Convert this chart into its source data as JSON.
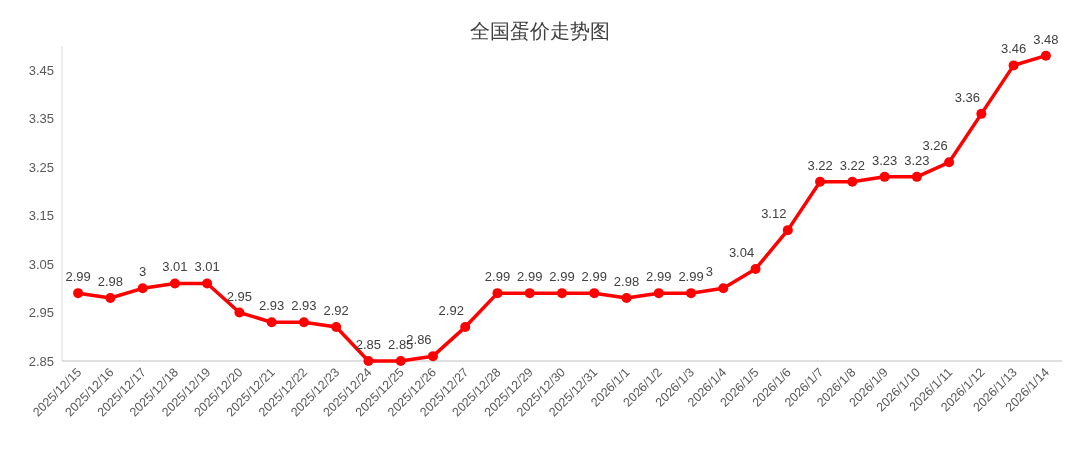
{
  "chart_data": {
    "type": "line",
    "title": "全国蛋价走势图",
    "categories": [
      "2025/12/15",
      "2025/12/16",
      "2025/12/17",
      "2025/12/18",
      "2025/12/19",
      "2025/12/20",
      "2025/12/21",
      "2025/12/22",
      "2025/12/23",
      "2025/12/24",
      "2025/12/25",
      "2025/12/26",
      "2025/12/27",
      "2025/12/28",
      "2025/12/29",
      "2025/12/30",
      "2025/12/31",
      "2026/1/1",
      "2026/1/2",
      "2026/1/3",
      "2026/1/4",
      "2026/1/5",
      "2026/1/6",
      "2026/1/7",
      "2026/1/8",
      "2026/1/9",
      "2026/1/10",
      "2026/1/11",
      "2026/1/12",
      "2026/1/13",
      "2026/1/14"
    ],
    "series": [
      {
        "color": "#ff0000",
        "values": [
          2.99,
          2.98,
          3,
          3.01,
          3.01,
          2.95,
          2.93,
          2.93,
          2.92,
          2.85,
          2.85,
          2.86,
          2.92,
          2.99,
          2.99,
          2.99,
          2.99,
          2.98,
          2.99,
          2.99,
          3,
          3.04,
          3.12,
          3.22,
          3.22,
          3.23,
          3.23,
          3.26,
          3.36,
          3.46,
          3.48
        ]
      }
    ],
    "ylim": [
      2.85,
      3.5
    ],
    "yticks": [
      2.85,
      2.95,
      3.05,
      3.15,
      3.25,
      3.35,
      3.45
    ],
    "data_labels": true,
    "marker": "circle",
    "line_style": "solid",
    "grid": false
  }
}
